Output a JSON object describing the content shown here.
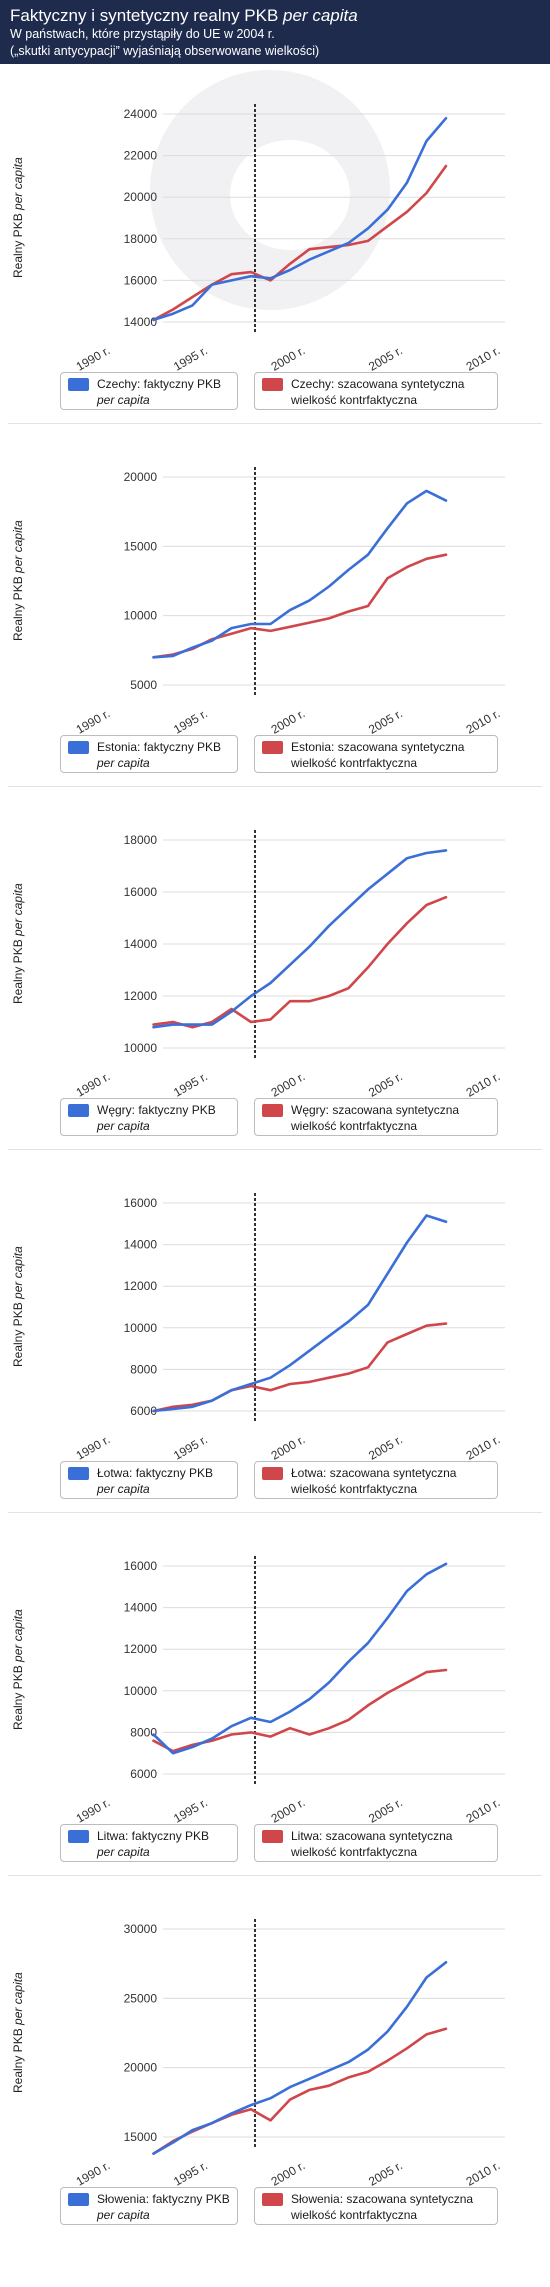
{
  "header": {
    "title_plain": "Faktyczny i syntetyczny realny PKB ",
    "title_italic": "per capita",
    "subtitle_line1": "W państwach, które przystąpiły do UE w 2004 r.",
    "subtitle_line2": "(„skutki antycypacji” wyjaśniają obserwowane wielkości)"
  },
  "ylabel_plain": "Realny PKB ",
  "ylabel_italic": "per capita",
  "colors": {
    "actual": "#3a6fd8",
    "synthetic": "#d0474b",
    "header_bg": "#1f2b4d"
  },
  "chart_data": [
    {
      "type": "line",
      "country": "Czechy",
      "ylim": [
        14000,
        24000
      ],
      "yticks": [
        14000,
        16000,
        18000,
        20000,
        22000,
        24000
      ],
      "xlim": [
        1990,
        2010
      ],
      "xticks": [
        1990,
        1995,
        2000,
        2005,
        2010
      ],
      "xtick_labels": [
        "1990 r.",
        "1995 r.",
        "2000 r.",
        "2005 r.",
        "2010 r."
      ],
      "vline_x": 1998,
      "legend_actual": "Czechy: faktyczny PKB",
      "legend_actual_italic": "per capita",
      "legend_synthetic_1": "Czechy: szacowana syntetyczna",
      "legend_synthetic_2": "wielkość kontrfaktyczna",
      "series": [
        {
          "name": "actual",
          "x": [
            1993,
            1994,
            1995,
            1996,
            1997,
            1998,
            1999,
            2000,
            2001,
            2002,
            2003,
            2004,
            2005,
            2006,
            2007,
            2008
          ],
          "y": [
            14100,
            14400,
            14800,
            15800,
            16000,
            16200,
            16100,
            16500,
            17000,
            17400,
            17800,
            18500,
            19400,
            20700,
            22700,
            23800
          ]
        },
        {
          "name": "synthetic",
          "x": [
            1993,
            1994,
            1995,
            1996,
            1997,
            1998,
            1999,
            2000,
            2001,
            2002,
            2003,
            2004,
            2005,
            2006,
            2007,
            2008
          ],
          "y": [
            14100,
            14600,
            15200,
            15800,
            16300,
            16400,
            16000,
            16800,
            17500,
            17600,
            17700,
            17900,
            18600,
            19300,
            20200,
            21500
          ]
        }
      ]
    },
    {
      "type": "line",
      "country": "Estonia",
      "ylim": [
        5000,
        20000
      ],
      "yticks": [
        5000,
        10000,
        15000,
        20000
      ],
      "xlim": [
        1990,
        2010
      ],
      "xticks": [
        1990,
        1995,
        2000,
        2005,
        2010
      ],
      "xtick_labels": [
        "1990 r.",
        "1995 r.",
        "2000 r.",
        "2005 r.",
        "2010 r."
      ],
      "vline_x": 1998,
      "legend_actual": "Estonia: faktyczny PKB",
      "legend_actual_italic": "per capita",
      "legend_synthetic_1": "Estonia: szacowana syntetyczna",
      "legend_synthetic_2": "wielkość kontrfaktyczna",
      "series": [
        {
          "name": "actual",
          "x": [
            1993,
            1994,
            1995,
            1996,
            1997,
            1998,
            1999,
            2000,
            2001,
            2002,
            2003,
            2004,
            2005,
            2006,
            2007,
            2008
          ],
          "y": [
            7000,
            7100,
            7700,
            8200,
            9100,
            9400,
            9400,
            10400,
            11100,
            12100,
            13300,
            14400,
            16300,
            18100,
            19000,
            18300
          ]
        },
        {
          "name": "synthetic",
          "x": [
            1993,
            1994,
            1995,
            1996,
            1997,
            1998,
            1999,
            2000,
            2001,
            2002,
            2003,
            2004,
            2005,
            2006,
            2007,
            2008
          ],
          "y": [
            7000,
            7200,
            7600,
            8300,
            8700,
            9100,
            8900,
            9200,
            9500,
            9800,
            10300,
            10700,
            12700,
            13500,
            14100,
            14400
          ]
        }
      ]
    },
    {
      "type": "line",
      "country": "Węgry",
      "ylim": [
        10000,
        18000
      ],
      "yticks": [
        10000,
        12000,
        14000,
        16000,
        18000
      ],
      "xlim": [
        1990,
        2010
      ],
      "xticks": [
        1990,
        1995,
        2000,
        2005,
        2010
      ],
      "xtick_labels": [
        "1990 r.",
        "1995 r.",
        "2000 r.",
        "2005 r.",
        "2010 r."
      ],
      "vline_x": 1998,
      "legend_actual": "Węgry: faktyczny PKB",
      "legend_actual_italic": "per capita",
      "legend_synthetic_1": "Węgry: szacowana syntetyczna",
      "legend_synthetic_2": "wielkość kontrfaktyczna",
      "series": [
        {
          "name": "actual",
          "x": [
            1993,
            1994,
            1995,
            1996,
            1997,
            1998,
            1999,
            2000,
            2001,
            2002,
            2003,
            2004,
            2005,
            2006,
            2007,
            2008
          ],
          "y": [
            10800,
            10900,
            10900,
            10900,
            11400,
            12000,
            12500,
            13200,
            13900,
            14700,
            15400,
            16100,
            16700,
            17300,
            17500,
            17600
          ]
        },
        {
          "name": "synthetic",
          "x": [
            1993,
            1994,
            1995,
            1996,
            1997,
            1998,
            1999,
            2000,
            2001,
            2002,
            2003,
            2004,
            2005,
            2006,
            2007,
            2008
          ],
          "y": [
            10900,
            11000,
            10800,
            11000,
            11500,
            11000,
            11100,
            11800,
            11800,
            12000,
            12300,
            13100,
            14000,
            14800,
            15500,
            15800
          ]
        }
      ]
    },
    {
      "type": "line",
      "country": "Łotwa",
      "ylim": [
        6000,
        16000
      ],
      "yticks": [
        6000,
        8000,
        10000,
        12000,
        14000,
        16000
      ],
      "xlim": [
        1990,
        2010
      ],
      "xticks": [
        1990,
        1995,
        2000,
        2005,
        2010
      ],
      "xtick_labels": [
        "1990 r.",
        "1995 r.",
        "2000 r.",
        "2005 r.",
        "2010 r."
      ],
      "vline_x": 1998,
      "legend_actual": "Łotwa: faktyczny PKB",
      "legend_actual_italic": "per capita",
      "legend_synthetic_1": "Łotwa: szacowana syntetyczna",
      "legend_synthetic_2": "wielkość kontrfaktyczna",
      "series": [
        {
          "name": "actual",
          "x": [
            1993,
            1994,
            1995,
            1996,
            1997,
            1998,
            1999,
            2000,
            2001,
            2002,
            2003,
            2004,
            2005,
            2006,
            2007,
            2008
          ],
          "y": [
            6000,
            6100,
            6200,
            6500,
            7000,
            7300,
            7600,
            8200,
            8900,
            9600,
            10300,
            11100,
            12600,
            14100,
            15400,
            15100
          ]
        },
        {
          "name": "synthetic",
          "x": [
            1993,
            1994,
            1995,
            1996,
            1997,
            1998,
            1999,
            2000,
            2001,
            2002,
            2003,
            2004,
            2005,
            2006,
            2007,
            2008
          ],
          "y": [
            6000,
            6200,
            6300,
            6500,
            7000,
            7200,
            7000,
            7300,
            7400,
            7600,
            7800,
            8100,
            9300,
            9700,
            10100,
            10200
          ]
        }
      ]
    },
    {
      "type": "line",
      "country": "Litwa",
      "ylim": [
        6000,
        16000
      ],
      "yticks": [
        6000,
        8000,
        10000,
        12000,
        14000,
        16000
      ],
      "xlim": [
        1990,
        2010
      ],
      "xticks": [
        1990,
        1995,
        2000,
        2005,
        2010
      ],
      "xtick_labels": [
        "1990 r.",
        "1995 r.",
        "2000 r.",
        "2005 r.",
        "2010 r."
      ],
      "vline_x": 1998,
      "legend_actual": "Litwa: faktyczny PKB",
      "legend_actual_italic": "per capita",
      "legend_synthetic_1": "Litwa: szacowana syntetyczna",
      "legend_synthetic_2": "wielkość kontrfaktyczna",
      "series": [
        {
          "name": "actual",
          "x": [
            1993,
            1994,
            1995,
            1996,
            1997,
            1998,
            1999,
            2000,
            2001,
            2002,
            2003,
            2004,
            2005,
            2006,
            2007,
            2008
          ],
          "y": [
            7900,
            7000,
            7300,
            7700,
            8300,
            8700,
            8500,
            9000,
            9600,
            10400,
            11400,
            12300,
            13500,
            14800,
            15600,
            16100
          ]
        },
        {
          "name": "synthetic",
          "x": [
            1993,
            1994,
            1995,
            1996,
            1997,
            1998,
            1999,
            2000,
            2001,
            2002,
            2003,
            2004,
            2005,
            2006,
            2007,
            2008
          ],
          "y": [
            7600,
            7100,
            7400,
            7600,
            7900,
            8000,
            7800,
            8200,
            7900,
            8200,
            8600,
            9300,
            9900,
            10400,
            10900,
            11000
          ]
        }
      ]
    },
    {
      "type": "line",
      "country": "Słowenia",
      "ylim": [
        15000,
        30000
      ],
      "yticks": [
        15000,
        20000,
        25000,
        30000
      ],
      "xlim": [
        1990,
        2010
      ],
      "xticks": [
        1990,
        1995,
        2000,
        2005,
        2010
      ],
      "xtick_labels": [
        "1990 r.",
        "1995 r.",
        "2000 r.",
        "2005 r.",
        "2010 r."
      ],
      "vline_x": 1998,
      "legend_actual": "Słowenia: faktyczny PKB",
      "legend_actual_italic": "per capita",
      "legend_synthetic_1": "Słowenia: szacowana syntetyczna",
      "legend_synthetic_2": "wielkość kontrfaktyczna",
      "series": [
        {
          "name": "actual",
          "x": [
            1993,
            1994,
            1995,
            1996,
            1997,
            1998,
            1999,
            2000,
            2001,
            2002,
            2003,
            2004,
            2005,
            2006,
            2007,
            2008
          ],
          "y": [
            13800,
            14600,
            15500,
            16000,
            16700,
            17300,
            17800,
            18600,
            19200,
            19800,
            20400,
            21300,
            22600,
            24400,
            26500,
            27600
          ]
        },
        {
          "name": "synthetic",
          "x": [
            1993,
            1994,
            1995,
            1996,
            1997,
            1998,
            1999,
            2000,
            2001,
            2002,
            2003,
            2004,
            2005,
            2006,
            2007,
            2008
          ],
          "y": [
            13800,
            14700,
            15400,
            16000,
            16600,
            17000,
            16200,
            17700,
            18400,
            18700,
            19300,
            19700,
            20500,
            21400,
            22400,
            22800
          ]
        }
      ]
    }
  ]
}
